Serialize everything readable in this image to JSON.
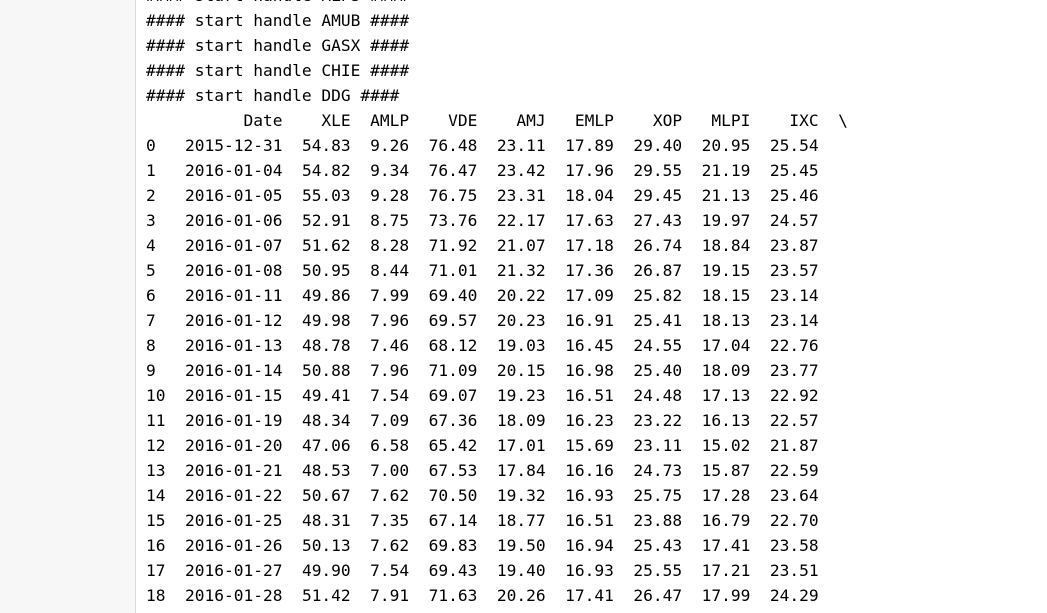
{
  "log_lines": [
    "#### start handle MLPS ####",
    "#### start handle AMUB ####",
    "#### start handle GASX ####",
    "#### start handle CHIE ####",
    "#### start handle DDG ####"
  ],
  "table": {
    "columns": [
      "Date",
      "XLE",
      "AMLP",
      "VDE",
      "AMJ",
      "EMLP",
      "XOP",
      "MLPI",
      "IXC"
    ],
    "continuation_marker": "\\",
    "rows": [
      [
        "0",
        "2015-12-31",
        "54.83",
        "9.26",
        "76.48",
        "23.11",
        "17.89",
        "29.40",
        "20.95",
        "25.54"
      ],
      [
        "1",
        "2016-01-04",
        "54.82",
        "9.34",
        "76.47",
        "23.42",
        "17.96",
        "29.55",
        "21.19",
        "25.45"
      ],
      [
        "2",
        "2016-01-05",
        "55.03",
        "9.28",
        "76.75",
        "23.31",
        "18.04",
        "29.45",
        "21.13",
        "25.46"
      ],
      [
        "3",
        "2016-01-06",
        "52.91",
        "8.75",
        "73.76",
        "22.17",
        "17.63",
        "27.43",
        "19.97",
        "24.57"
      ],
      [
        "4",
        "2016-01-07",
        "51.62",
        "8.28",
        "71.92",
        "21.07",
        "17.18",
        "26.74",
        "18.84",
        "23.87"
      ],
      [
        "5",
        "2016-01-08",
        "50.95",
        "8.44",
        "71.01",
        "21.32",
        "17.36",
        "26.87",
        "19.15",
        "23.57"
      ],
      [
        "6",
        "2016-01-11",
        "49.86",
        "7.99",
        "69.40",
        "20.22",
        "17.09",
        "25.82",
        "18.15",
        "23.14"
      ],
      [
        "7",
        "2016-01-12",
        "49.98",
        "7.96",
        "69.57",
        "20.23",
        "16.91",
        "25.41",
        "18.13",
        "23.14"
      ],
      [
        "8",
        "2016-01-13",
        "48.78",
        "7.46",
        "68.12",
        "19.03",
        "16.45",
        "24.55",
        "17.04",
        "22.76"
      ],
      [
        "9",
        "2016-01-14",
        "50.88",
        "7.96",
        "71.09",
        "20.15",
        "16.98",
        "25.40",
        "18.09",
        "23.77"
      ],
      [
        "10",
        "2016-01-15",
        "49.41",
        "7.54",
        "69.07",
        "19.23",
        "16.51",
        "24.48",
        "17.13",
        "22.92"
      ],
      [
        "11",
        "2016-01-19",
        "48.34",
        "7.09",
        "67.36",
        "18.09",
        "16.23",
        "23.22",
        "16.13",
        "22.57"
      ],
      [
        "12",
        "2016-01-20",
        "47.06",
        "6.58",
        "65.42",
        "17.01",
        "15.69",
        "23.11",
        "15.02",
        "21.87"
      ],
      [
        "13",
        "2016-01-21",
        "48.53",
        "7.00",
        "67.53",
        "17.84",
        "16.16",
        "24.73",
        "15.87",
        "22.59"
      ],
      [
        "14",
        "2016-01-22",
        "50.67",
        "7.62",
        "70.50",
        "19.32",
        "16.93",
        "25.75",
        "17.28",
        "23.64"
      ],
      [
        "15",
        "2016-01-25",
        "48.31",
        "7.35",
        "67.14",
        "18.77",
        "16.51",
        "23.88",
        "16.79",
        "22.70"
      ],
      [
        "16",
        "2016-01-26",
        "50.13",
        "7.62",
        "69.83",
        "19.50",
        "16.94",
        "25.43",
        "17.41",
        "23.58"
      ],
      [
        "17",
        "2016-01-27",
        "49.90",
        "7.54",
        "69.43",
        "19.40",
        "16.93",
        "25.55",
        "17.21",
        "23.51"
      ],
      [
        "18",
        "2016-01-28",
        "51.42",
        "7.91",
        "71.63",
        "20.26",
        "17.41",
        "26.47",
        "17.99",
        "24.29"
      ]
    ]
  }
}
